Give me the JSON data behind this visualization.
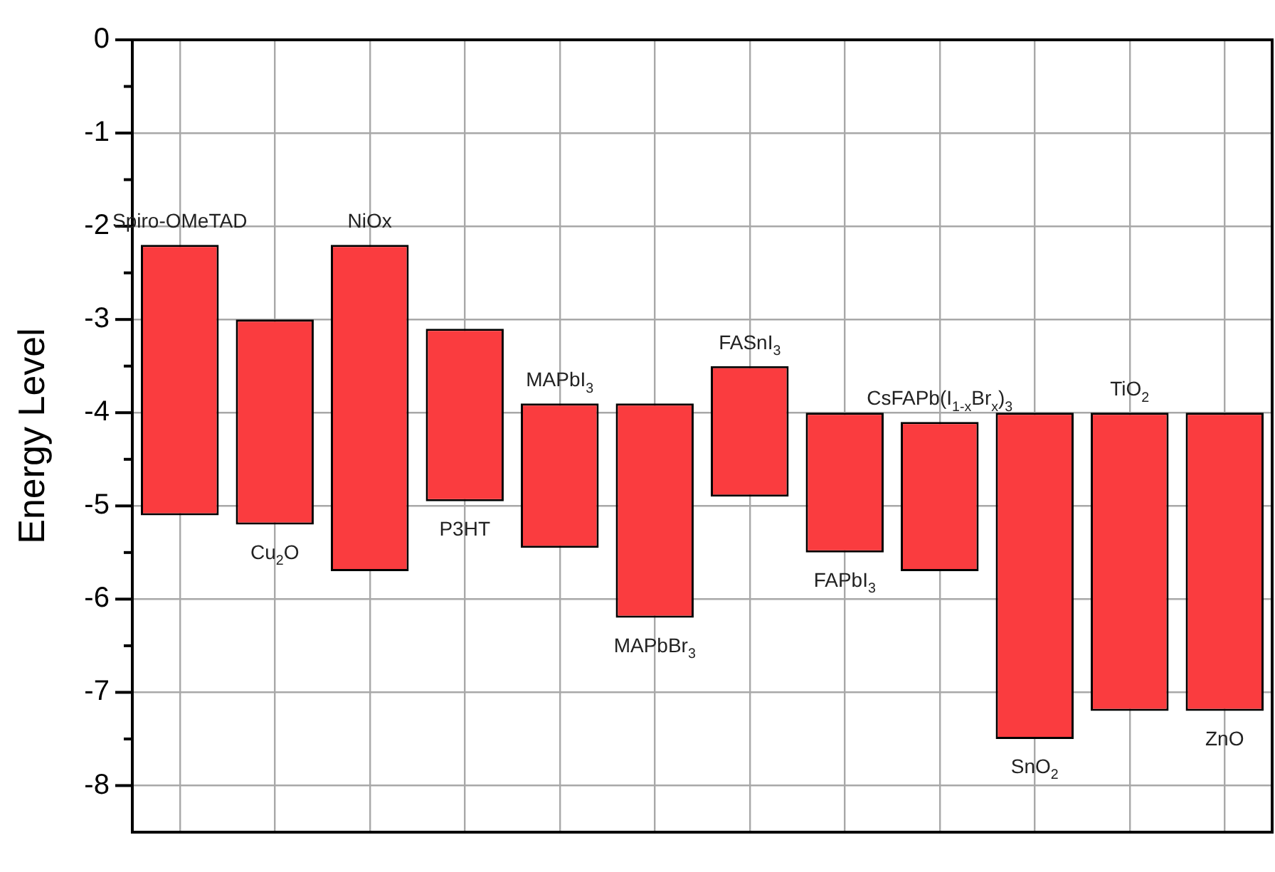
{
  "chart_data": {
    "type": "bar",
    "ylabel": "Energy Level",
    "categories": [
      "Spiro-OMeTAD",
      "Cu$_{2}$O",
      "NiOx",
      "P3HT",
      "MAPbI$_{3}$",
      "MAPbBr$_{3}$",
      "FASnI$_{3}$",
      "FAPbI$_{3}$",
      "CsFAPb(I$_{1-x}$Br$_{x}$)$_{3}$",
      "SnO$_{2}$",
      "TiO$_{2}$",
      "ZnO"
    ],
    "base": [
      -5.1,
      -5.2,
      -5.7,
      -4.95,
      -5.45,
      -6.2,
      -4.9,
      -5.5,
      -5.7,
      -7.5,
      -7.2,
      -7.2
    ],
    "values": [
      2.9,
      2.2,
      3.5,
      1.85,
      1.55,
      2.3,
      1.4,
      1.5,
      1.6,
      3.5,
      3.2,
      3.2
    ],
    "color": "#fa3c3f",
    "ylim": [
      -8.5,
      0
    ],
    "yticks": [
      -8,
      {
        "value": -7.5,
        "label": null
      },
      -7,
      {
        "value": -6.5,
        "label": null
      },
      -6,
      {
        "value": -5.5,
        "label": null
      },
      -5,
      {
        "value": -4.5,
        "label": null
      },
      -4,
      {
        "value": -3.5,
        "label": null
      },
      -3,
      {
        "value": -2.5,
        "label": null
      },
      -2,
      {
        "value": -1.5,
        "label": null
      },
      -1,
      {
        "value": -0.5,
        "label": null
      },
      0
    ],
    "grid": true,
    "tick_labels": "y",
    "legend": false
  }
}
